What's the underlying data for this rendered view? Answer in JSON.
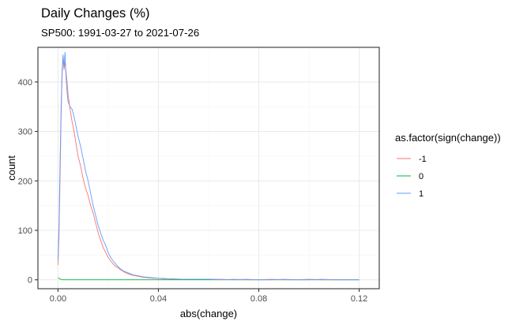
{
  "chart_data": {
    "type": "line",
    "title": "Daily Changes (%)",
    "subtitle": "SP500: 1991-03-27 to 2021-07-26",
    "xlabel": "abs(change)",
    "ylabel": "count",
    "xlim": [
      -0.008,
      0.128
    ],
    "ylim": [
      -18,
      470
    ],
    "x_ticks": [
      0.0,
      0.04,
      0.08,
      0.12
    ],
    "x_tick_labels": [
      "0.00",
      "0.04",
      "0.08",
      "0.12"
    ],
    "y_ticks": [
      0,
      100,
      200,
      300,
      400
    ],
    "y_tick_labels": [
      "0",
      "100",
      "200",
      "300",
      "400"
    ],
    "grid": true,
    "legend": {
      "title": "as.factor(sign(change))",
      "placement": "right"
    },
    "series": [
      {
        "name": "-1",
        "color": "#F8766D",
        "points": [
          [
            0.0,
            30
          ],
          [
            0.0004,
            90
          ],
          [
            0.0008,
            200
          ],
          [
            0.0012,
            320
          ],
          [
            0.0016,
            410
          ],
          [
            0.002,
            450
          ],
          [
            0.0024,
            425
          ],
          [
            0.0028,
            440
          ],
          [
            0.0032,
            420
          ],
          [
            0.0036,
            400
          ],
          [
            0.004,
            375
          ],
          [
            0.0048,
            345
          ],
          [
            0.0056,
            320
          ],
          [
            0.0064,
            300
          ],
          [
            0.0072,
            275
          ],
          [
            0.008,
            250
          ],
          [
            0.009,
            230
          ],
          [
            0.01,
            205
          ],
          [
            0.011,
            185
          ],
          [
            0.012,
            170
          ],
          [
            0.013,
            150
          ],
          [
            0.014,
            135
          ],
          [
            0.015,
            115
          ],
          [
            0.016,
            95
          ],
          [
            0.017,
            80
          ],
          [
            0.018,
            65
          ],
          [
            0.019,
            55
          ],
          [
            0.02,
            45
          ],
          [
            0.021,
            38
          ],
          [
            0.022,
            32
          ],
          [
            0.023,
            27
          ],
          [
            0.024,
            24
          ],
          [
            0.025,
            20
          ],
          [
            0.026,
            17
          ],
          [
            0.027,
            14
          ],
          [
            0.028,
            12
          ],
          [
            0.029,
            10
          ],
          [
            0.03,
            9
          ],
          [
            0.032,
            7
          ],
          [
            0.034,
            5
          ],
          [
            0.036,
            4
          ],
          [
            0.038,
            3
          ],
          [
            0.04,
            3
          ],
          [
            0.042,
            2
          ],
          [
            0.044,
            2
          ],
          [
            0.046,
            1
          ],
          [
            0.05,
            1
          ],
          [
            0.055,
            1
          ],
          [
            0.06,
            1
          ],
          [
            0.065,
            0
          ],
          [
            0.07,
            1
          ],
          [
            0.075,
            0
          ],
          [
            0.08,
            0
          ],
          [
            0.085,
            1
          ],
          [
            0.09,
            0
          ],
          [
            0.095,
            0
          ],
          [
            0.1,
            1
          ],
          [
            0.105,
            0
          ],
          [
            0.11,
            0
          ],
          [
            0.115,
            0
          ],
          [
            0.12,
            0
          ]
        ]
      },
      {
        "name": "0",
        "color": "#00BA38",
        "points": [
          [
            0.0,
            4
          ],
          [
            0.0005,
            3
          ],
          [
            0.001,
            1
          ],
          [
            0.002,
            0
          ],
          [
            0.01,
            0
          ],
          [
            0.02,
            0
          ],
          [
            0.04,
            0
          ],
          [
            0.06,
            0
          ],
          [
            0.08,
            0
          ],
          [
            0.1,
            0
          ],
          [
            0.12,
            0
          ]
        ]
      },
      {
        "name": "1",
        "color": "#619CFF",
        "points": [
          [
            0.0,
            40
          ],
          [
            0.0004,
            110
          ],
          [
            0.0008,
            230
          ],
          [
            0.0012,
            340
          ],
          [
            0.0016,
            420
          ],
          [
            0.002,
            455
          ],
          [
            0.0024,
            430
          ],
          [
            0.0028,
            460
          ],
          [
            0.0032,
            410
          ],
          [
            0.0036,
            380
          ],
          [
            0.004,
            360
          ],
          [
            0.0048,
            350
          ],
          [
            0.0056,
            345
          ],
          [
            0.0064,
            330
          ],
          [
            0.0072,
            310
          ],
          [
            0.008,
            290
          ],
          [
            0.009,
            270
          ],
          [
            0.01,
            245
          ],
          [
            0.011,
            220
          ],
          [
            0.012,
            200
          ],
          [
            0.013,
            175
          ],
          [
            0.014,
            150
          ],
          [
            0.015,
            130
          ],
          [
            0.016,
            110
          ],
          [
            0.017,
            95
          ],
          [
            0.018,
            80
          ],
          [
            0.019,
            70
          ],
          [
            0.02,
            55
          ],
          [
            0.021,
            45
          ],
          [
            0.022,
            38
          ],
          [
            0.023,
            32
          ],
          [
            0.024,
            26
          ],
          [
            0.025,
            22
          ],
          [
            0.026,
            18
          ],
          [
            0.027,
            16
          ],
          [
            0.028,
            14
          ],
          [
            0.029,
            12
          ],
          [
            0.03,
            10
          ],
          [
            0.032,
            8
          ],
          [
            0.034,
            6
          ],
          [
            0.036,
            5
          ],
          [
            0.038,
            4
          ],
          [
            0.04,
            3
          ],
          [
            0.042,
            3
          ],
          [
            0.044,
            2
          ],
          [
            0.046,
            2
          ],
          [
            0.05,
            1
          ],
          [
            0.055,
            1
          ],
          [
            0.06,
            1
          ],
          [
            0.065,
            1
          ],
          [
            0.07,
            0
          ],
          [
            0.075,
            1
          ],
          [
            0.08,
            0
          ],
          [
            0.085,
            0
          ],
          [
            0.09,
            1
          ],
          [
            0.095,
            0
          ],
          [
            0.1,
            0
          ],
          [
            0.105,
            1
          ],
          [
            0.11,
            0
          ],
          [
            0.115,
            0
          ],
          [
            0.12,
            0
          ]
        ]
      }
    ]
  }
}
